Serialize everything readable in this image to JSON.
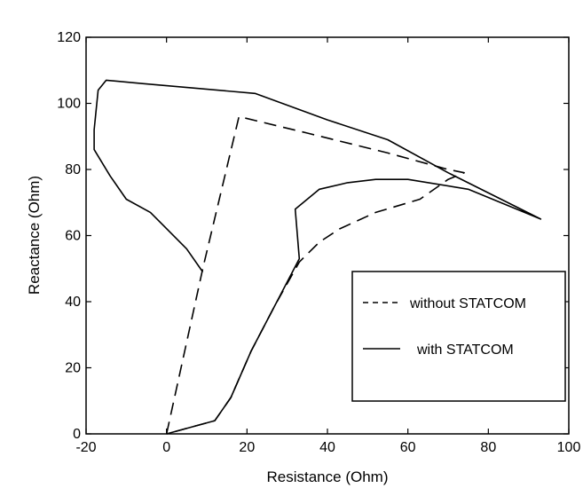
{
  "chart_data": {
    "type": "line",
    "xlabel": "Resistance (Ohm)",
    "ylabel": "Reactance (Ohm)",
    "xlim": [
      -20,
      100
    ],
    "ylim": [
      0,
      120
    ],
    "xticks": [
      -20,
      0,
      20,
      40,
      60,
      80,
      100
    ],
    "yticks": [
      0,
      20,
      40,
      60,
      80,
      100,
      120
    ],
    "grid": false,
    "legend_position": "lower-right",
    "series": [
      {
        "name": "without STATCOM",
        "style": "dashed",
        "color": "#000000",
        "points": [
          [
            0,
            0
          ],
          [
            9,
            50
          ],
          [
            18,
            96
          ],
          [
            35,
            91
          ],
          [
            55,
            85
          ],
          [
            70,
            80
          ],
          [
            74,
            79
          ],
          [
            70,
            77
          ],
          [
            63,
            71
          ],
          [
            52,
            67
          ],
          [
            43,
            62
          ],
          [
            38,
            58
          ],
          [
            33,
            52
          ],
          [
            27,
            39
          ],
          [
            21,
            25
          ],
          [
            16,
            11
          ],
          [
            12,
            4
          ],
          [
            0,
            0
          ]
        ]
      },
      {
        "name": "with STATCOM",
        "style": "solid",
        "color": "#000000",
        "points": [
          [
            9,
            49
          ],
          [
            5,
            56
          ],
          [
            -4,
            67
          ],
          [
            -10,
            71
          ],
          [
            -14,
            78
          ],
          [
            -18,
            86
          ],
          [
            -18,
            92
          ],
          [
            -17,
            104
          ],
          [
            -15,
            107
          ],
          [
            -6,
            106
          ],
          [
            22,
            103
          ],
          [
            40,
            95
          ],
          [
            55,
            89
          ],
          [
            70,
            79
          ],
          [
            93,
            65
          ],
          [
            75,
            74
          ],
          [
            60,
            77
          ],
          [
            52,
            77
          ],
          [
            45,
            76
          ],
          [
            38,
            74
          ],
          [
            32,
            68
          ],
          [
            33,
            53
          ],
          [
            27,
            39
          ],
          [
            21,
            25
          ],
          [
            16,
            11
          ],
          [
            12,
            4
          ],
          [
            0,
            0
          ]
        ]
      }
    ]
  }
}
